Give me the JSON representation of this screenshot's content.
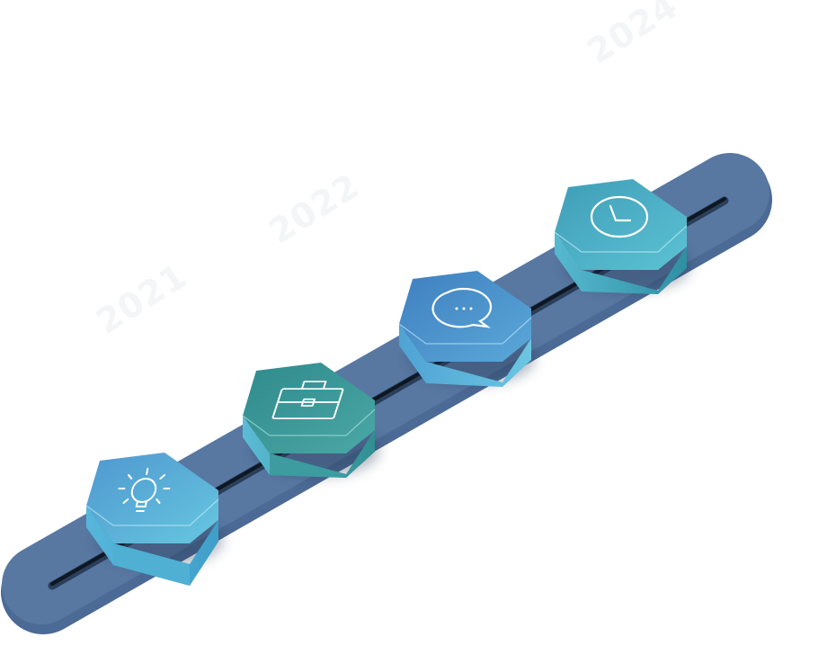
{
  "timeline": {
    "years": [
      "2021",
      "2022",
      "2024"
    ],
    "milestones": [
      {
        "icon": "lightbulb-icon",
        "top_color": "#5dbfdc",
        "side_color": "#4aa9cb"
      },
      {
        "icon": "briefcase-icon",
        "top_color": "#3a9a98",
        "side_color": "#2f8a8a"
      },
      {
        "icon": "chat-bubble-icon",
        "top_color": "#4d94cc",
        "side_color": "#52b1d8"
      },
      {
        "icon": "clock-icon",
        "top_color": "#4bb0c4",
        "side_color": "#3d9fb6"
      }
    ],
    "colors": {
      "track": "#5878a2",
      "track_edge": "#4b6a95",
      "groove": "#0e1722",
      "background": "#ffffff"
    }
  }
}
